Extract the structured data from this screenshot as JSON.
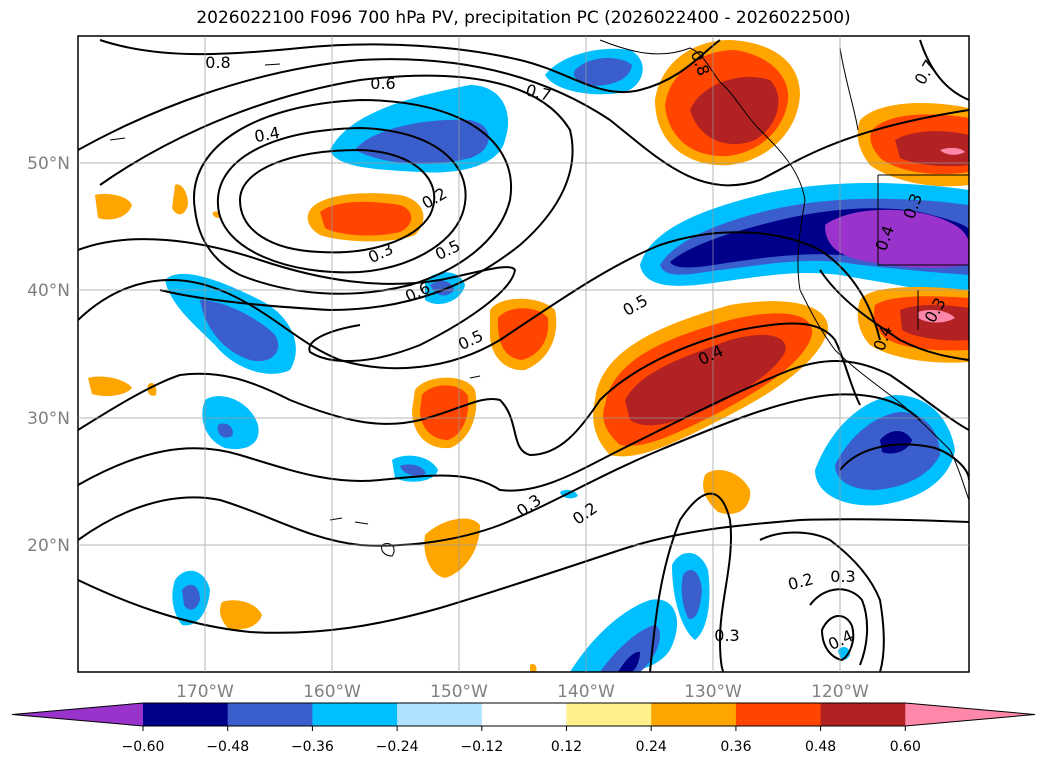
{
  "title": "2026022100 F096 700 hPa PV, precipitation PC (2026022400 - 2026022500)",
  "map": {
    "lon_labels": [
      "170°W",
      "160°W",
      "150°W",
      "140°W",
      "130°W",
      "120°W"
    ],
    "lat_labels": [
      "50°N",
      "40°N",
      "30°N",
      "20°N"
    ],
    "contour_labels": [
      "0.8",
      "0.6",
      "0.7",
      "0.8",
      "0.7",
      "0.4",
      "0.2",
      "0.3",
      "0.5",
      "0.6",
      "0.5",
      "0.5",
      "0.4",
      "0.3",
      "0.2",
      "0.3",
      "0.2",
      "0.3",
      "0.4",
      "0.4",
      "0.3",
      "0.4",
      "0.3"
    ]
  },
  "colorbar": {
    "colors": [
      "#9933cc",
      "#00008b",
      "#3a5fcd",
      "#00bfff",
      "#b0e2ff",
      "#ffffff",
      "#fff08a",
      "#ffa500",
      "#ff4500",
      "#b22222",
      "#ff88aa"
    ],
    "tick_labels": [
      "−0.60",
      "−0.48",
      "−0.36",
      "−0.24",
      "−0.12",
      "0.12",
      "0.24",
      "0.36",
      "0.48",
      "0.60"
    ]
  }
}
